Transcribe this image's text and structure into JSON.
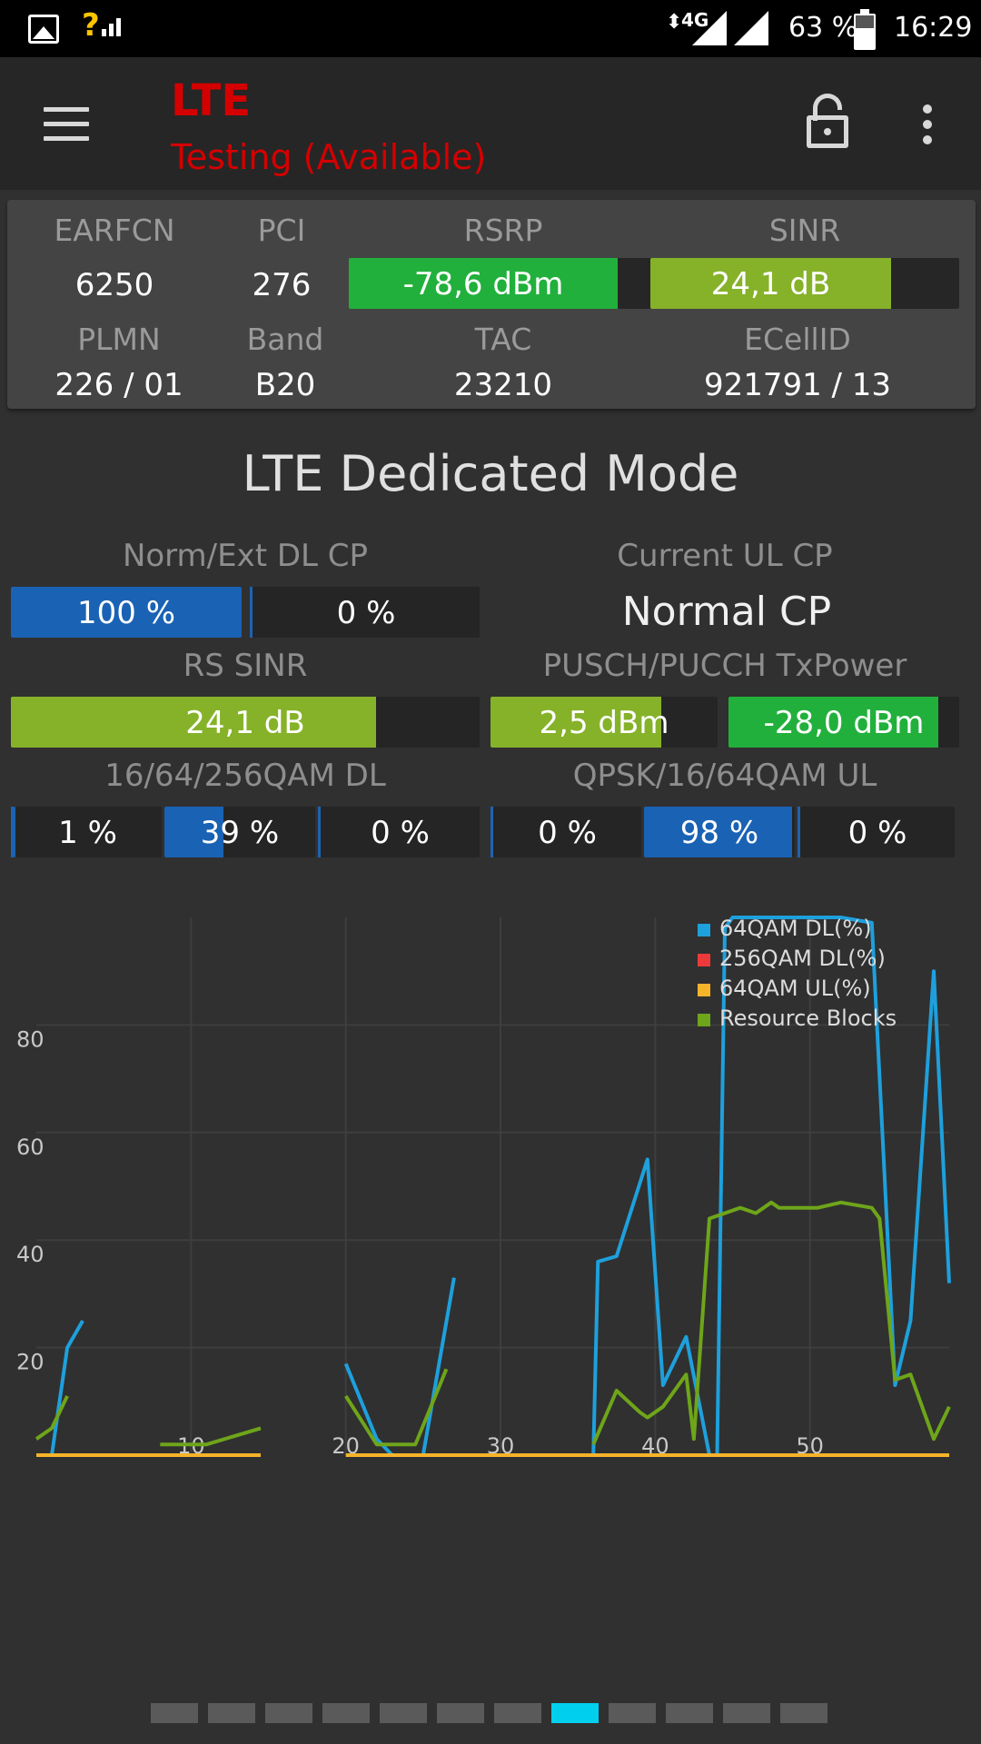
{
  "status_bar": {
    "network": "4G",
    "battery": "63 %",
    "time": "16:29",
    "icons": [
      "image-icon",
      "no-sim-signal-icon",
      "data-arrows-icon",
      "signal-icon",
      "signal-icon",
      "battery-icon"
    ]
  },
  "toolbar": {
    "title": "LTE",
    "subtitle": "Testing (Available)",
    "title_color": "#d40000",
    "icons": [
      "menu-icon",
      "lock-open-icon",
      "more-vert-icon"
    ]
  },
  "cell": {
    "headers": {
      "earfcn": "EARFCN",
      "pci": "PCI",
      "rsrp": "RSRP",
      "sinr": "SINR",
      "plmn": "PLMN",
      "band": "Band",
      "tac": "TAC",
      "ecellid": "ECellID"
    },
    "values": {
      "earfcn": "6250",
      "pci": "276",
      "plmn": "226 / 01",
      "band": "B20",
      "tac": "23210",
      "ecellid": "921791 / 13"
    },
    "rsrp": {
      "text": "-78,6 dBm",
      "level": 0.89,
      "color": "#22b03c"
    },
    "sinr": {
      "text": "24,1 dB",
      "level": 0.78,
      "color": "#86b22a"
    }
  },
  "mode": {
    "title": "LTE Dedicated Mode",
    "norm_ext_label": "Norm/Ext DL CP",
    "norm": {
      "text": "100 %",
      "level": 1.0
    },
    "ext": {
      "text": "0 %",
      "level": 0.0
    },
    "current_ul_label": "Current UL CP",
    "current_ul_value": "Normal CP",
    "rs_sinr_label": "RS SINR",
    "rs_sinr": {
      "text": "24,1 dB",
      "level": 0.78
    },
    "tx_label": "PUSCH/PUCCH TxPower",
    "pusch": {
      "text": "2,5 dBm",
      "level": 0.75
    },
    "pucch": {
      "text": "-28,0 dBm",
      "level": 0.91
    },
    "dl_qam_label": "16/64/256QAM DL",
    "dl_qam": [
      {
        "text": "1 %",
        "level": 0.01
      },
      {
        "text": "39 %",
        "level": 0.39
      },
      {
        "text": "0 %",
        "level": 0.0
      }
    ],
    "ul_qam_label": "QPSK/16/64QAM UL",
    "ul_qam": [
      {
        "text": "0 %",
        "level": 0.0
      },
      {
        "text": "98 %",
        "level": 0.98
      },
      {
        "text": "0 %",
        "level": 0.0
      }
    ],
    "colors": {
      "blue": "#1a62b4",
      "green_yellow": "#86b22a",
      "green": "#22b03c"
    }
  },
  "chart_data": {
    "type": "line",
    "xlim": [
      0,
      59
    ],
    "ylim": [
      0,
      100
    ],
    "x_ticks": [
      "10",
      "20",
      "30",
      "40",
      "50"
    ],
    "y_ticks": [
      "20",
      "40",
      "60",
      "80"
    ],
    "grid": true,
    "legend_position": "top-right",
    "series": [
      {
        "name": "64QAM DL(%)",
        "color": "#1ea0dc",
        "points": [
          [
            1,
            0
          ],
          [
            2,
            20
          ],
          [
            3,
            25
          ],
          [
            null,
            null
          ],
          [
            20,
            17
          ],
          [
            22,
            3
          ],
          [
            23,
            0
          ],
          [
            null,
            null
          ],
          [
            25,
            0
          ],
          [
            27,
            33
          ],
          [
            null,
            null
          ],
          [
            36,
            0
          ],
          [
            36.3,
            36
          ],
          [
            37.5,
            37
          ],
          [
            39.5,
            55
          ],
          [
            40.5,
            13
          ],
          [
            42,
            22
          ],
          [
            43.5,
            0
          ],
          [
            44,
            0
          ],
          [
            44.5,
            98
          ],
          [
            45,
            100
          ],
          [
            52,
            100
          ],
          [
            54,
            99
          ],
          [
            55.5,
            13
          ],
          [
            56.5,
            25
          ],
          [
            58,
            90
          ],
          [
            59,
            32
          ]
        ]
      },
      {
        "name": "256QAM DL(%)",
        "color": "#ec3a3a",
        "points": [
          [
            36,
            0
          ],
          [
            39,
            0
          ]
        ]
      },
      {
        "name": "64QAM UL(%)",
        "color": "#f6b42a",
        "points": [
          [
            0,
            0
          ],
          [
            14.5,
            0
          ],
          [
            null,
            null
          ],
          [
            20,
            0
          ],
          [
            59,
            0
          ]
        ]
      },
      {
        "name": "Resource Blocks",
        "color": "#6ea51a",
        "points": [
          [
            0,
            3
          ],
          [
            1,
            5
          ],
          [
            2,
            11
          ],
          [
            null,
            null
          ],
          [
            8,
            2
          ],
          [
            10,
            2
          ],
          [
            11,
            2
          ],
          [
            14.5,
            5
          ],
          [
            null,
            null
          ],
          [
            20,
            11
          ],
          [
            22,
            2
          ],
          [
            24.5,
            2
          ],
          [
            26.5,
            16
          ],
          [
            null,
            null
          ],
          [
            36,
            2
          ],
          [
            37.5,
            12
          ],
          [
            39,
            8
          ],
          [
            39.5,
            7
          ],
          [
            40.5,
            9
          ],
          [
            42,
            15
          ],
          [
            42.5,
            3
          ],
          [
            43.5,
            44
          ],
          [
            45.5,
            46
          ],
          [
            46.5,
            45
          ],
          [
            47.5,
            47
          ],
          [
            48,
            46
          ],
          [
            49.5,
            46
          ],
          [
            50.5,
            46
          ],
          [
            52,
            47
          ],
          [
            54,
            46
          ],
          [
            54.5,
            44
          ],
          [
            55.5,
            14
          ],
          [
            56.5,
            15
          ],
          [
            58,
            3
          ],
          [
            59,
            9
          ]
        ]
      }
    ]
  },
  "pager": {
    "count": 12,
    "active": 7
  }
}
